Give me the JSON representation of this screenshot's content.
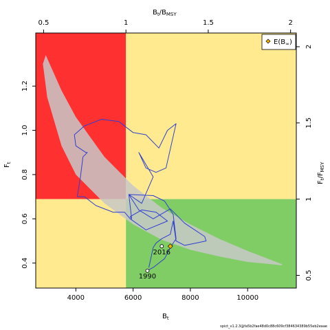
{
  "chart_data": {
    "type": "line",
    "xlabel": "B",
    "xlabel_sub": "t",
    "ylabel": "F",
    "ylabel_sub": "t",
    "x2label": "B",
    "x2label_sub1": "t",
    "x2label_mid": "/B",
    "x2label_sub2": "MSY",
    "y2label": "F",
    "y2label_sub1": "t",
    "y2label_mid": "/F",
    "y2label_sub2": "MSY",
    "xlim": [
      2600,
      11700
    ],
    "ylim": [
      0.287,
      1.44
    ],
    "x_ticks": [
      4000,
      6000,
      8000,
      10000
    ],
    "y_ticks": [
      0.4,
      0.6,
      0.8,
      1.0,
      1.2
    ],
    "x_tick_labels": [
      "4000",
      "6000",
      "8000",
      "10000"
    ],
    "y_tick_labels": [
      "0.4",
      "0.6",
      "0.8",
      "1.0",
      "1.2"
    ],
    "bmsy": 5750,
    "fmsy": 0.689,
    "x2_ticks": [
      0.5,
      1,
      1.5,
      2
    ],
    "y2_ticks": [
      0.5,
      1,
      1.5,
      2
    ],
    "x2_tick_labels": [
      "0.5",
      "1",
      "1.5",
      "2"
    ],
    "y2_tick_labels": [
      "0.5",
      "1",
      "1.5",
      "2"
    ],
    "zones": {
      "red": "#ff3030",
      "yellow": "#ffea90",
      "green": "#80cd66"
    },
    "confidence_region": {
      "color": "#c8c8c8",
      "upper": [
        [
          2950,
          1.34
        ],
        [
          3500,
          1.18
        ],
        [
          4000,
          1.06
        ],
        [
          5000,
          0.88
        ],
        [
          6000,
          0.75
        ],
        [
          7000,
          0.65
        ],
        [
          8000,
          0.575
        ],
        [
          9000,
          0.51
        ],
        [
          10000,
          0.455
        ],
        [
          11200,
          0.395
        ]
      ],
      "lower": [
        [
          11200,
          0.39
        ],
        [
          10000,
          0.405
        ],
        [
          9000,
          0.43
        ],
        [
          8000,
          0.46
        ],
        [
          7000,
          0.505
        ],
        [
          6000,
          0.575
        ],
        [
          5000,
          0.67
        ],
        [
          4000,
          0.8
        ],
        [
          3500,
          0.93
        ],
        [
          3000,
          1.15
        ],
        [
          2850,
          1.3
        ]
      ]
    },
    "trajectory": {
      "color": "#2f3fcf",
      "points": [
        [
          6550,
          0.37
        ],
        [
          6700,
          0.38
        ],
        [
          7100,
          0.42
        ],
        [
          7300,
          0.47
        ],
        [
          7500,
          0.51
        ],
        [
          7400,
          0.62
        ],
        [
          7100,
          0.68
        ],
        [
          6700,
          0.705
        ],
        [
          5850,
          0.71
        ],
        [
          5950,
          0.6
        ],
        [
          5900,
          0.61
        ],
        [
          6300,
          0.64
        ],
        [
          6800,
          0.63
        ],
        [
          7200,
          0.59
        ],
        [
          6450,
          0.55
        ],
        [
          5900,
          0.6
        ],
        [
          5700,
          0.63
        ],
        [
          5300,
          0.63
        ],
        [
          4700,
          0.66
        ],
        [
          4300,
          0.7
        ],
        [
          4050,
          0.7
        ],
        [
          4150,
          0.78
        ],
        [
          4250,
          0.88
        ],
        [
          4400,
          0.9
        ],
        [
          4350,
          0.9
        ],
        [
          4000,
          0.93
        ],
        [
          3950,
          0.98
        ],
        [
          4300,
          1.02
        ],
        [
          4900,
          1.05
        ],
        [
          5500,
          1.04
        ],
        [
          6000,
          0.99
        ],
        [
          6450,
          0.98
        ],
        [
          6900,
          0.92
        ],
        [
          7200,
          1.0
        ],
        [
          7500,
          1.03
        ],
        [
          7150,
          0.83
        ],
        [
          6800,
          0.81
        ],
        [
          6450,
          0.83
        ],
        [
          6200,
          0.9
        ],
        [
          6700,
          0.79
        ],
        [
          6300,
          0.67
        ],
        [
          5850,
          0.71
        ],
        [
          6200,
          0.64
        ],
        [
          6700,
          0.6
        ],
        [
          7300,
          0.645
        ],
        [
          7800,
          0.58
        ],
        [
          8500,
          0.52
        ],
        [
          8550,
          0.5
        ],
        [
          8000,
          0.485
        ],
        [
          7800,
          0.48
        ],
        [
          7500,
          0.5
        ],
        [
          7400,
          0.59
        ],
        [
          7300,
          0.53
        ],
        [
          7000,
          0.51
        ],
        [
          6800,
          0.49
        ],
        [
          6700,
          0.47
        ],
        [
          6550,
          0.38
        ]
      ]
    },
    "start_point": {
      "x": 6500,
      "y": 0.365,
      "label": "1990"
    },
    "end_point": {
      "x": 7000,
      "y": 0.476,
      "label": "2016"
    },
    "expected_point": {
      "x": 7300,
      "y": 0.476
    },
    "legend": {
      "label_main": "E(B",
      "label_sub": "∞",
      "label_end": ")",
      "position": "top-right"
    }
  },
  "footer": "spict_v1.2.3@fa5b2fae48d0c88c609cf384634389b55eb2eaae"
}
